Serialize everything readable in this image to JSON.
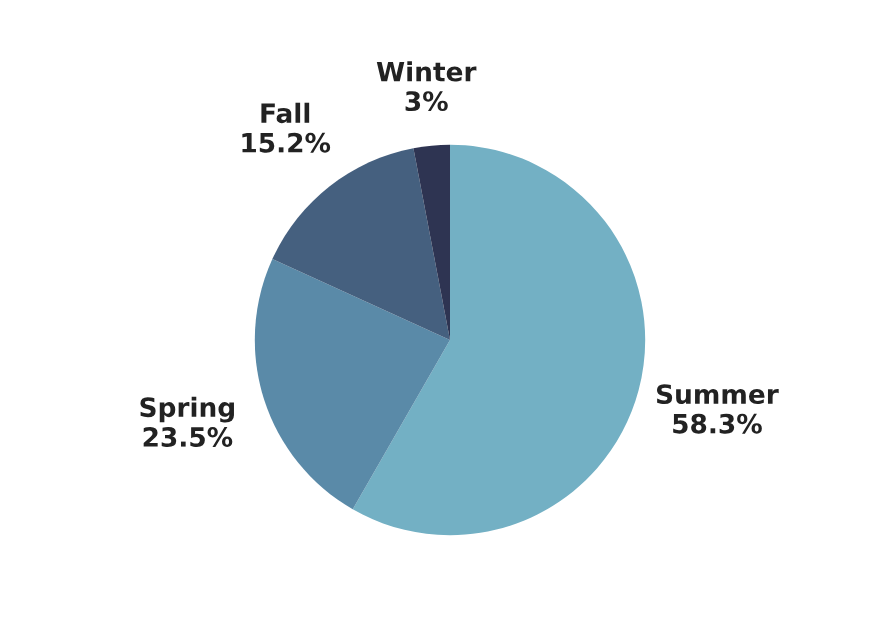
{
  "chart_data": {
    "type": "pie",
    "categories": [
      "Summer",
      "Spring",
      "Fall",
      "Winter"
    ],
    "values": [
      58.3,
      23.5,
      15.2,
      3
    ],
    "value_labels": [
      "58.3%",
      "23.5%",
      "15.2%",
      "3%"
    ],
    "colors": [
      "#73b0c4",
      "#5a8aa8",
      "#45607f",
      "#2e3452"
    ],
    "legend": false
  }
}
